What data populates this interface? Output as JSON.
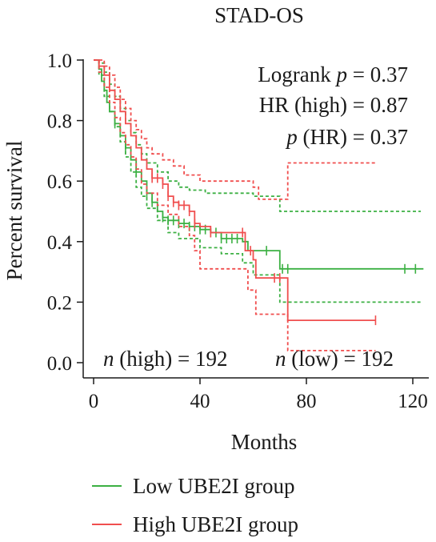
{
  "chart_data": {
    "type": "line",
    "title": "STAD-OS",
    "xlabel": "Months",
    "ylabel": "Percent survival",
    "xlim": [
      0,
      126
    ],
    "ylim": [
      0,
      1.05
    ],
    "xticks": [
      0,
      40,
      80,
      120
    ],
    "yticks": [
      0.0,
      0.2,
      0.4,
      0.6,
      0.8,
      1.0
    ],
    "x_tick_labels": [
      "0",
      "40",
      "80",
      "120"
    ],
    "y_tick_labels": [
      "0.0",
      "0.2",
      "0.4",
      "0.6",
      "0.8",
      "1.0"
    ],
    "grid": false,
    "legend_position": "bottom",
    "annotations": {
      "logrank_prefix": "Logrank ",
      "logrank_p": "p",
      "logrank_value": " = 0.37",
      "hr_text": "HR (high) = 0.87",
      "phr_p": "p",
      "phr_value": " (HR) = 0.37",
      "n_high_n": "n",
      "n_high_text": " (high) = 192",
      "n_low_n": "n",
      "n_low_text": " (low) = 192"
    },
    "series": [
      {
        "name": "Low UBE2I group",
        "color": "#3cb043",
        "style": "solid",
        "points": [
          [
            0,
            1.0
          ],
          [
            2,
            0.97
          ],
          [
            3,
            0.93
          ],
          [
            4,
            0.9
          ],
          [
            5,
            0.86
          ],
          [
            6,
            0.83
          ],
          [
            8,
            0.79
          ],
          [
            10,
            0.75
          ],
          [
            12,
            0.71
          ],
          [
            14,
            0.67
          ],
          [
            16,
            0.63
          ],
          [
            18,
            0.6
          ],
          [
            20,
            0.56
          ],
          [
            22,
            0.53
          ],
          [
            24,
            0.5
          ],
          [
            26,
            0.48
          ],
          [
            28,
            0.47
          ],
          [
            32,
            0.46
          ],
          [
            36,
            0.45
          ],
          [
            40,
            0.44
          ],
          [
            44,
            0.43
          ],
          [
            48,
            0.41
          ],
          [
            56,
            0.4
          ],
          [
            58,
            0.37
          ],
          [
            70,
            0.33
          ],
          [
            70,
            0.31
          ],
          [
            124,
            0.31
          ]
        ],
        "censor_x": [
          8,
          12,
          16,
          20,
          22,
          26,
          28,
          30,
          32,
          34,
          36,
          38,
          40,
          42,
          44,
          46,
          48,
          50,
          52,
          54,
          65,
          71,
          73,
          117,
          121
        ]
      },
      {
        "name": "",
        "color": "#3cb043",
        "style": "dashed",
        "points": [
          [
            0,
            1.0
          ],
          [
            2,
            0.99
          ],
          [
            4,
            0.96
          ],
          [
            6,
            0.92
          ],
          [
            8,
            0.88
          ],
          [
            10,
            0.84
          ],
          [
            12,
            0.8
          ],
          [
            14,
            0.76
          ],
          [
            16,
            0.72
          ],
          [
            18,
            0.69
          ],
          [
            20,
            0.66
          ],
          [
            24,
            0.63
          ],
          [
            28,
            0.6
          ],
          [
            32,
            0.58
          ],
          [
            36,
            0.57
          ],
          [
            42,
            0.56
          ],
          [
            60,
            0.55
          ],
          [
            70,
            0.5
          ],
          [
            123,
            0.5
          ]
        ],
        "censor_x": []
      },
      {
        "name": "",
        "color": "#3cb043",
        "style": "dashed",
        "points": [
          [
            0,
            1.0
          ],
          [
            2,
            0.95
          ],
          [
            4,
            0.88
          ],
          [
            6,
            0.83
          ],
          [
            8,
            0.78
          ],
          [
            10,
            0.73
          ],
          [
            12,
            0.68
          ],
          [
            14,
            0.63
          ],
          [
            16,
            0.58
          ],
          [
            18,
            0.55
          ],
          [
            20,
            0.51
          ],
          [
            24,
            0.47
          ],
          [
            28,
            0.43
          ],
          [
            32,
            0.41
          ],
          [
            40,
            0.38
          ],
          [
            48,
            0.36
          ],
          [
            56,
            0.33
          ],
          [
            60,
            0.29
          ],
          [
            70,
            0.23
          ],
          [
            70,
            0.2
          ],
          [
            123,
            0.2
          ]
        ],
        "censor_x": []
      },
      {
        "name": "High UBE2I group",
        "color": "#f04e4e",
        "style": "solid",
        "points": [
          [
            0,
            1.0
          ],
          [
            2,
            0.98
          ],
          [
            4,
            0.95
          ],
          [
            6,
            0.9
          ],
          [
            8,
            0.87
          ],
          [
            10,
            0.83
          ],
          [
            12,
            0.79
          ],
          [
            14,
            0.75
          ],
          [
            16,
            0.71
          ],
          [
            18,
            0.67
          ],
          [
            20,
            0.64
          ],
          [
            22,
            0.61
          ],
          [
            26,
            0.59
          ],
          [
            28,
            0.55
          ],
          [
            30,
            0.53
          ],
          [
            32,
            0.52
          ],
          [
            36,
            0.5
          ],
          [
            38,
            0.46
          ],
          [
            40,
            0.45
          ],
          [
            44,
            0.43
          ],
          [
            56,
            0.43
          ],
          [
            57,
            0.37
          ],
          [
            60,
            0.34
          ],
          [
            61,
            0.28
          ],
          [
            73,
            0.28
          ],
          [
            73,
            0.14
          ],
          [
            106,
            0.14
          ]
        ],
        "censor_x": [
          22,
          24,
          26,
          28,
          30,
          32,
          34,
          36,
          38,
          44,
          56,
          59,
          68,
          70,
          106
        ]
      },
      {
        "name": "",
        "color": "#f04e4e",
        "style": "dashed",
        "points": [
          [
            0,
            1.0
          ],
          [
            2,
            1.0
          ],
          [
            4,
            0.98
          ],
          [
            6,
            0.95
          ],
          [
            8,
            0.91
          ],
          [
            10,
            0.87
          ],
          [
            12,
            0.84
          ],
          [
            14,
            0.8
          ],
          [
            16,
            0.77
          ],
          [
            18,
            0.74
          ],
          [
            20,
            0.71
          ],
          [
            22,
            0.69
          ],
          [
            26,
            0.67
          ],
          [
            30,
            0.65
          ],
          [
            34,
            0.62
          ],
          [
            40,
            0.6
          ],
          [
            60,
            0.58
          ],
          [
            62,
            0.54
          ],
          [
            73,
            0.54
          ],
          [
            73,
            0.66
          ],
          [
            106,
            0.66
          ]
        ],
        "censor_x": []
      },
      {
        "name": "",
        "color": "#f04e4e",
        "style": "dashed",
        "points": [
          [
            0,
            1.0
          ],
          [
            2,
            0.96
          ],
          [
            4,
            0.91
          ],
          [
            6,
            0.86
          ],
          [
            8,
            0.81
          ],
          [
            10,
            0.76
          ],
          [
            12,
            0.72
          ],
          [
            14,
            0.68
          ],
          [
            16,
            0.64
          ],
          [
            18,
            0.59
          ],
          [
            20,
            0.56
          ],
          [
            24,
            0.52
          ],
          [
            28,
            0.49
          ],
          [
            32,
            0.45
          ],
          [
            36,
            0.42
          ],
          [
            38,
            0.37
          ],
          [
            40,
            0.31
          ],
          [
            56,
            0.31
          ],
          [
            58,
            0.24
          ],
          [
            61,
            0.18
          ],
          [
            61,
            0.16
          ],
          [
            73,
            0.16
          ],
          [
            73,
            0.04
          ],
          [
            106,
            0.04
          ]
        ],
        "censor_x": []
      }
    ]
  }
}
